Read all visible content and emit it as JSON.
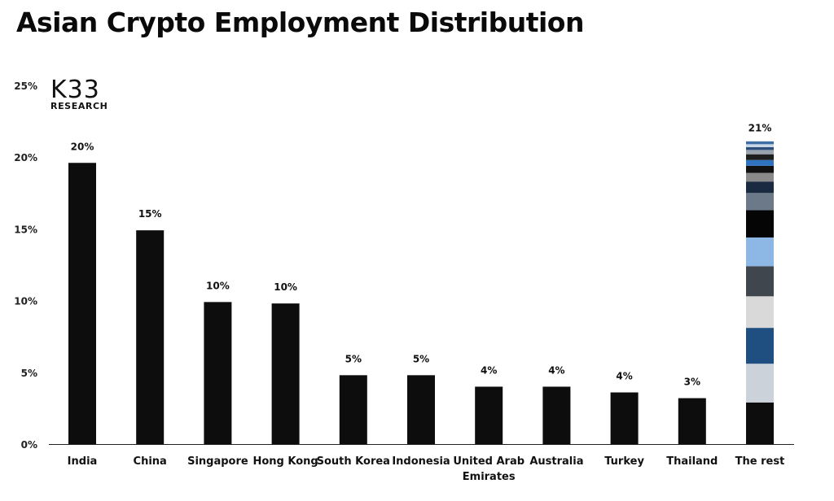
{
  "title": "Asian Crypto Employment Distribution",
  "logo": {
    "main": "K33",
    "sub": "RESEARCH"
  },
  "chart_data": {
    "type": "bar",
    "title": "Asian Crypto Employment Distribution",
    "xlabel": "",
    "ylabel": "",
    "ylim": [
      0,
      25
    ],
    "yticks": [
      "0%",
      "5%",
      "10%",
      "15%",
      "20%",
      "25%"
    ],
    "grid": false,
    "categories": [
      "India",
      "China",
      "Singapore",
      "Hong Kong",
      "South Korea",
      "Indonesia",
      "United Arab Emirates",
      "Australia",
      "Turkey",
      "Thailand",
      "The rest"
    ],
    "category_labels": [
      [
        "India"
      ],
      [
        "China"
      ],
      [
        "Singapore"
      ],
      [
        "Hong Kong"
      ],
      [
        "South Korea"
      ],
      [
        "Indonesia"
      ],
      [
        "United Arab",
        "Emirates"
      ],
      [
        "Australia"
      ],
      [
        "Turkey"
      ],
      [
        "Thailand"
      ],
      [
        "The rest"
      ]
    ],
    "values": [
      19.6,
      14.9,
      9.9,
      9.8,
      4.8,
      4.8,
      4.0,
      4.0,
      3.6,
      3.2,
      20.9
    ],
    "data_labels": [
      "20%",
      "15%",
      "10%",
      "10%",
      "5%",
      "5%",
      "4%",
      "4%",
      "4%",
      "3%",
      "21%"
    ],
    "bar_color": "#0d0d0d",
    "rest_segments": [
      {
        "value": 2.9,
        "color": "#0d0d0d"
      },
      {
        "value": 2.7,
        "color": "#ccd2da"
      },
      {
        "value": 2.5,
        "color": "#1f4e80"
      },
      {
        "value": 2.2,
        "color": "#d9d9d9"
      },
      {
        "value": 2.1,
        "color": "#40464d"
      },
      {
        "value": 2.0,
        "color": "#8db8e6"
      },
      {
        "value": 1.9,
        "color": "#050505"
      },
      {
        "value": 1.2,
        "color": "#6b7988"
      },
      {
        "value": 0.8,
        "color": "#1a2a40"
      },
      {
        "value": 0.6,
        "color": "#8a8a8a"
      },
      {
        "value": 0.5,
        "color": "#111111"
      },
      {
        "value": 0.4,
        "color": "#2f73c0"
      },
      {
        "value": 0.4,
        "color": "#1e1e1e"
      },
      {
        "value": 0.3,
        "color": "#9aa3ad"
      },
      {
        "value": 0.2,
        "color": "#2b4f7a"
      },
      {
        "value": 0.2,
        "color": "#c9d6e6"
      },
      {
        "value": 0.2,
        "color": "#3d6ea5"
      }
    ]
  }
}
